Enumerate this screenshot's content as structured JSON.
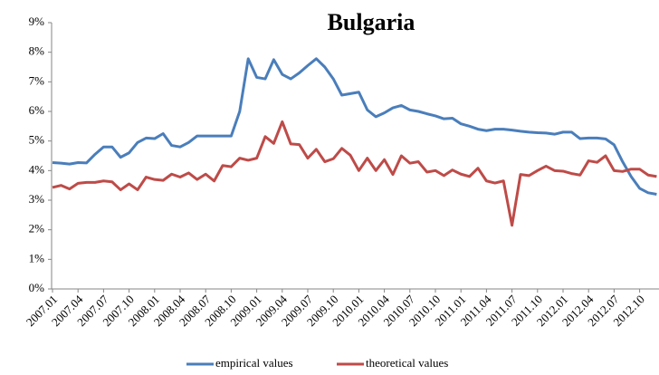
{
  "chart_data": {
    "type": "line",
    "title": "Bulgaria",
    "categories": [
      "2007.01",
      null,
      null,
      "2007.04",
      null,
      null,
      "2007.07",
      null,
      null,
      "2007.10",
      null,
      null,
      "2008.01",
      null,
      null,
      "2008.04",
      null,
      null,
      "2008.07",
      null,
      null,
      "2008.10",
      null,
      null,
      "2009.01",
      null,
      null,
      "2009.04",
      null,
      null,
      "2009.07",
      null,
      null,
      "2009.10",
      null,
      null,
      "2010.01",
      null,
      null,
      "2010.04",
      null,
      null,
      "2010.07",
      null,
      null,
      "2010.10",
      null,
      null,
      "2011.01",
      null,
      null,
      "2011.04",
      null,
      null,
      "2011.07",
      null,
      null,
      "2011.10",
      null,
      null,
      "2012.01",
      null,
      null,
      "2012.04",
      null,
      null,
      "2012.07",
      null,
      null,
      "2012.10",
      null,
      null
    ],
    "series": [
      {
        "name": "empirical values",
        "color": "#4a7ebb",
        "values": [
          4.27,
          4.25,
          4.22,
          4.27,
          4.26,
          4.55,
          4.8,
          4.8,
          4.45,
          4.6,
          4.95,
          5.1,
          5.08,
          5.25,
          4.85,
          4.8,
          4.95,
          5.17,
          5.17,
          5.17,
          5.17,
          5.17,
          6.0,
          7.78,
          7.15,
          7.1,
          7.75,
          7.25,
          7.1,
          7.3,
          7.55,
          7.78,
          7.5,
          7.1,
          6.55,
          6.6,
          6.65,
          6.05,
          5.82,
          5.95,
          6.12,
          6.2,
          6.05,
          6.0,
          5.92,
          5.85,
          5.75,
          5.77,
          5.58,
          5.5,
          5.4,
          5.35,
          5.4,
          5.4,
          5.37,
          5.33,
          5.3,
          5.28,
          5.27,
          5.23,
          5.3,
          5.3,
          5.08,
          5.1,
          5.1,
          5.07,
          4.87,
          4.3,
          3.8,
          3.4,
          3.25,
          3.2
        ]
      },
      {
        "name": "theoretical values",
        "color": "#be4b48",
        "values": [
          3.43,
          3.5,
          3.38,
          3.57,
          3.6,
          3.6,
          3.65,
          3.62,
          3.35,
          3.55,
          3.35,
          3.78,
          3.7,
          3.67,
          3.88,
          3.78,
          3.92,
          3.7,
          3.88,
          3.65,
          4.17,
          4.13,
          4.42,
          4.35,
          4.42,
          5.15,
          4.92,
          5.65,
          4.9,
          4.88,
          4.42,
          4.72,
          4.3,
          4.4,
          4.75,
          4.52,
          4.0,
          4.42,
          4.0,
          4.37,
          3.87,
          4.5,
          4.25,
          4.3,
          3.95,
          4.0,
          3.83,
          4.02,
          3.88,
          3.8,
          4.08,
          3.65,
          3.58,
          3.65,
          2.15,
          3.87,
          3.83,
          4.0,
          4.15,
          4.0,
          3.98,
          3.9,
          3.85,
          4.33,
          4.28,
          4.5,
          4.0,
          3.97,
          4.05,
          4.05,
          3.85,
          3.8
        ]
      }
    ],
    "ylim": [
      0,
      9
    ],
    "yticks": [
      {
        "value": 0,
        "label": "0%"
      },
      {
        "value": 1,
        "label": "1%"
      },
      {
        "value": 2,
        "label": "2%"
      },
      {
        "value": 3,
        "label": "3%"
      },
      {
        "value": 4,
        "label": "4%"
      },
      {
        "value": 5,
        "label": "5%"
      },
      {
        "value": 6,
        "label": "6%"
      },
      {
        "value": 7,
        "label": "7%"
      },
      {
        "value": 8,
        "label": "8%"
      },
      {
        "value": 9,
        "label": "9%"
      }
    ],
    "legend": "bottom"
  }
}
